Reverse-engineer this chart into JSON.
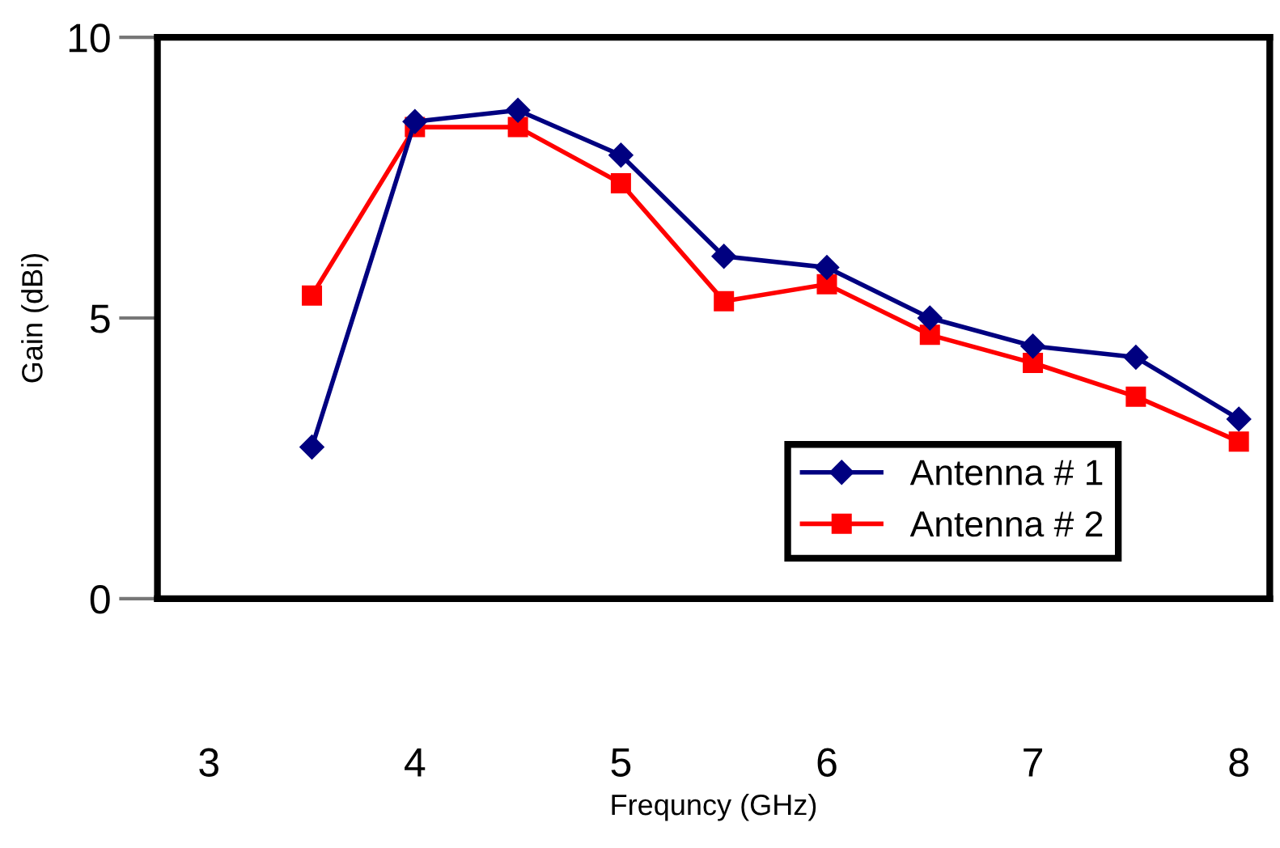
{
  "chart_data": {
    "type": "line",
    "xlabel": "Frequncy (GHz)",
    "ylabel": "Gain (dBi)",
    "x": [
      3.5,
      4,
      4.5,
      5,
      5.5,
      6,
      6.5,
      7,
      7.5,
      8
    ],
    "series": [
      {
        "name": "Antenna # 1",
        "color": "#000080",
        "marker": "diamond",
        "values": [
          2.7,
          8.5,
          8.7,
          7.9,
          6.1,
          5.9,
          5.0,
          4.5,
          4.3,
          3.2
        ]
      },
      {
        "name": "Antenna # 2",
        "color": "#ff0000",
        "marker": "square",
        "values": [
          5.4,
          8.4,
          8.4,
          7.4,
          5.3,
          5.6,
          4.7,
          4.2,
          3.6,
          2.8
        ]
      }
    ],
    "xlim": [
      2.75,
      8.15
    ],
    "xticks": [
      3,
      4,
      5,
      6,
      7,
      8
    ],
    "ylim": [
      0,
      10
    ],
    "yticks": [
      0,
      5,
      10
    ],
    "grid": false,
    "legend": "bottom right",
    "line_style": "solid"
  }
}
